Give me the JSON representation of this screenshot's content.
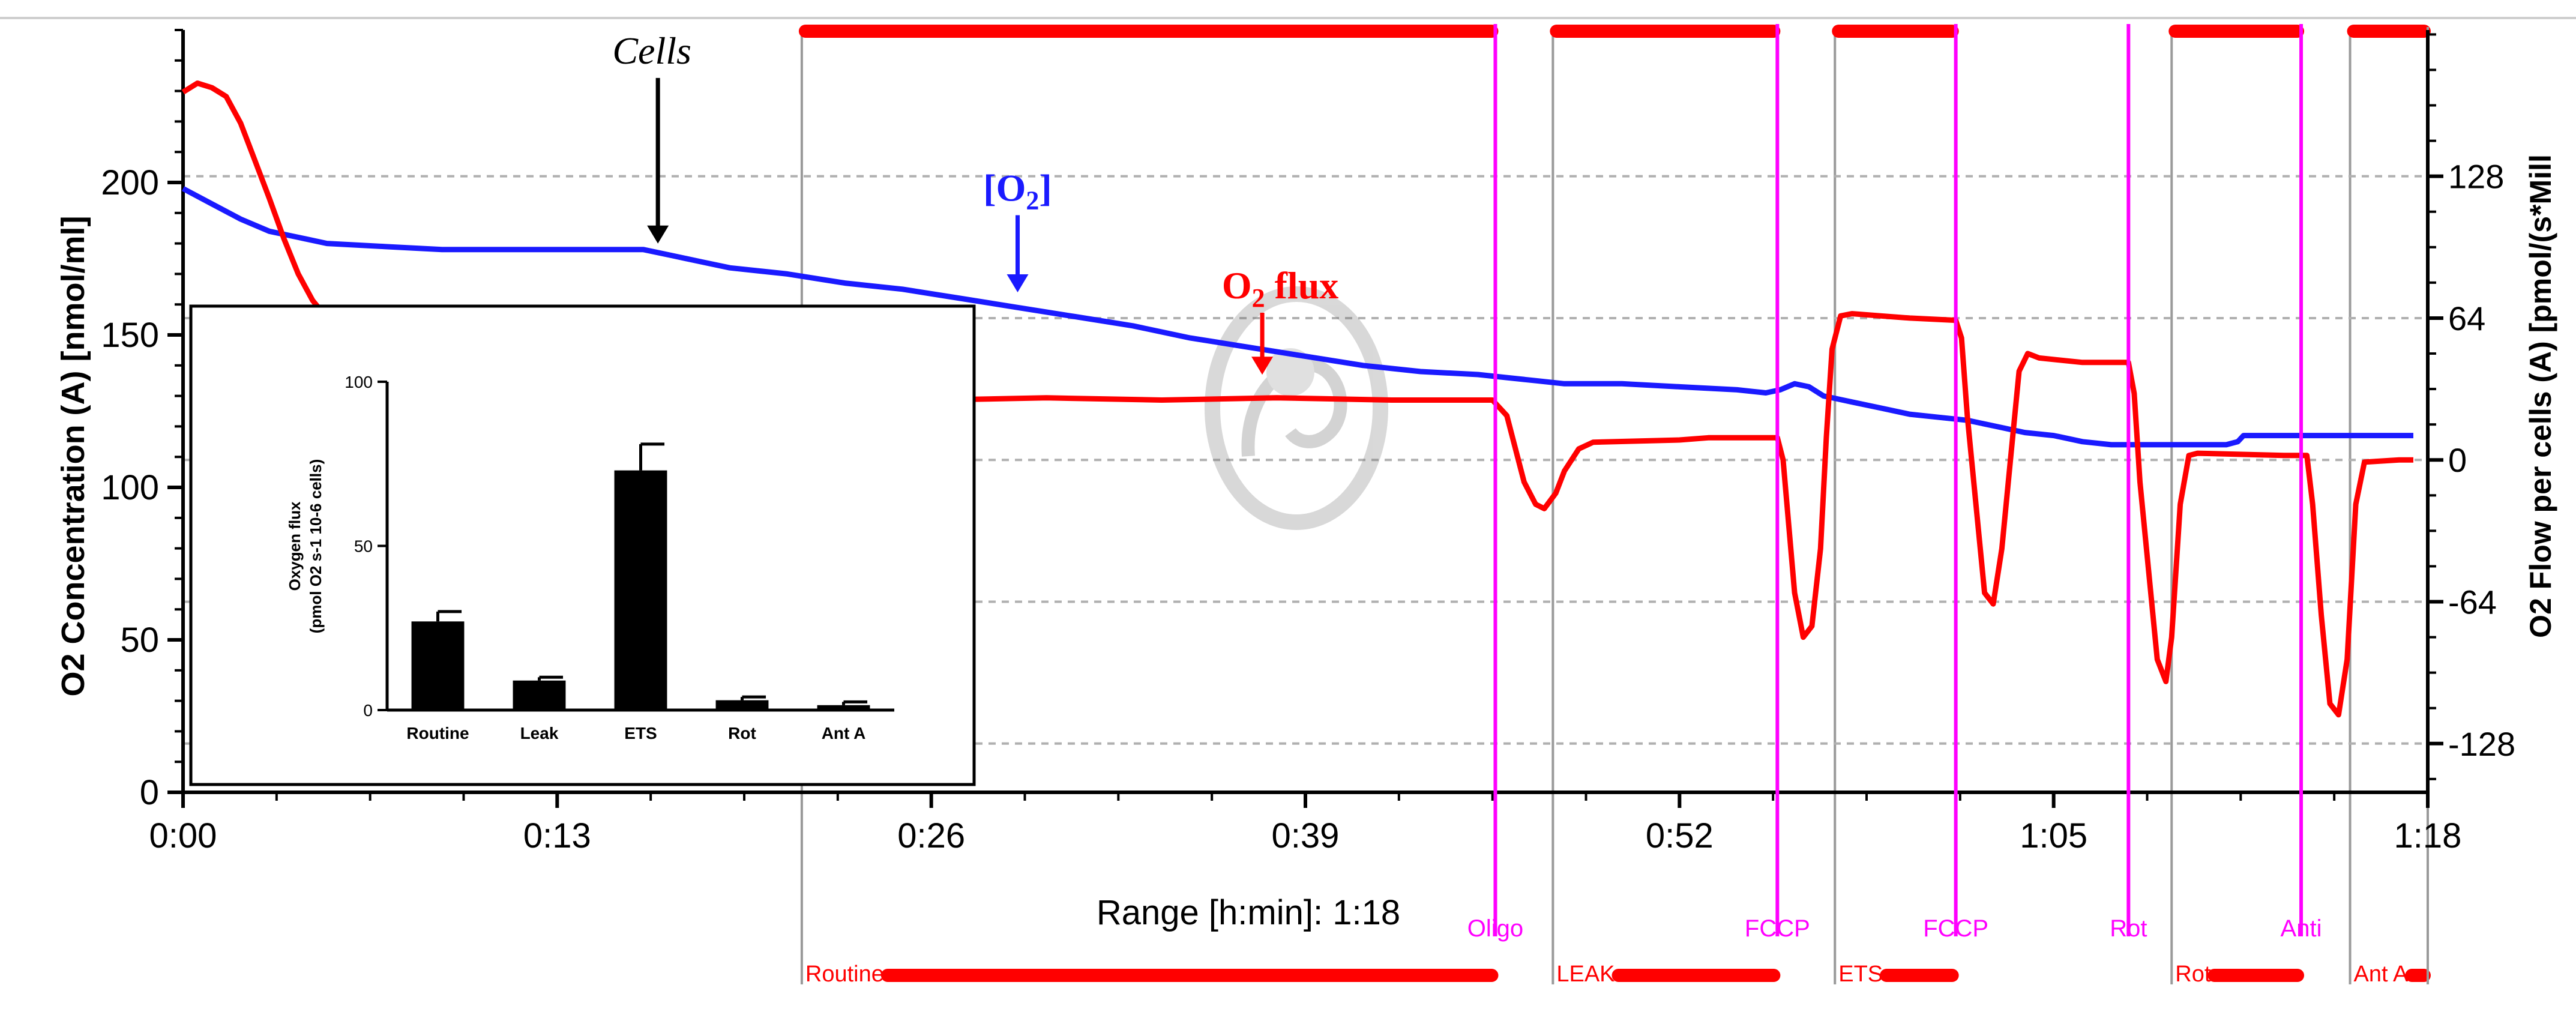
{
  "chart_data": {
    "type": "line",
    "x_unit": "h:min",
    "xlim": [
      0,
      78
    ],
    "x_ticks": [
      {
        "value": 0,
        "label": "0:00"
      },
      {
        "value": 13,
        "label": "0:13"
      },
      {
        "value": 26,
        "label": "0:26"
      },
      {
        "value": 39,
        "label": "0:39"
      },
      {
        "value": 52,
        "label": "0:52"
      },
      {
        "value": 65,
        "label": "1:05"
      },
      {
        "value": 78,
        "label": "1:18"
      }
    ],
    "xlabel": "Range [h:min]: 1:18",
    "ylabel_left": "O2 Concentration (A) [nmol/ml]",
    "ylim_left": [
      0,
      250
    ],
    "yticks_left": [
      0,
      50,
      100,
      150,
      200
    ],
    "ylabel_right": "O2 Flow per cells (A) [pmol/(s*Mill",
    "ylim_right": [
      -150,
      194
    ],
    "yticks_right": [
      -128,
      -64,
      0,
      64,
      128
    ],
    "series": [
      {
        "name": "[O2]",
        "axis": "left",
        "color": "#1a1aff",
        "points": [
          [
            0,
            198
          ],
          [
            1,
            193
          ],
          [
            2,
            188
          ],
          [
            3,
            184
          ],
          [
            4,
            182
          ],
          [
            5,
            180
          ],
          [
            7,
            179
          ],
          [
            9,
            178
          ],
          [
            11,
            178
          ],
          [
            13,
            178
          ],
          [
            15,
            178
          ],
          [
            16,
            178
          ],
          [
            17,
            176
          ],
          [
            18,
            174
          ],
          [
            19,
            172
          ],
          [
            21,
            170
          ],
          [
            23,
            167
          ],
          [
            25,
            165
          ],
          [
            27,
            162
          ],
          [
            29,
            159
          ],
          [
            31,
            156
          ],
          [
            33,
            153
          ],
          [
            35,
            149
          ],
          [
            37,
            146
          ],
          [
            39,
            143
          ],
          [
            41,
            140
          ],
          [
            43,
            138
          ],
          [
            45,
            137
          ],
          [
            46,
            136
          ],
          [
            47,
            135
          ],
          [
            48,
            134
          ],
          [
            50,
            134
          ],
          [
            52,
            133
          ],
          [
            54,
            132
          ],
          [
            55,
            131
          ],
          [
            55.5,
            132
          ],
          [
            56,
            134
          ],
          [
            56.5,
            133
          ],
          [
            57,
            130
          ],
          [
            58,
            128
          ],
          [
            59,
            126
          ],
          [
            60,
            124
          ],
          [
            61,
            123
          ],
          [
            62,
            122
          ],
          [
            63,
            120
          ],
          [
            64,
            118
          ],
          [
            65,
            117
          ],
          [
            66,
            115
          ],
          [
            67,
            114
          ],
          [
            68,
            114
          ],
          [
            69,
            114
          ],
          [
            70,
            114
          ],
          [
            71,
            114
          ],
          [
            71.4,
            115
          ],
          [
            71.6,
            117
          ],
          [
            72,
            117
          ],
          [
            74,
            117
          ],
          [
            76,
            117
          ],
          [
            77,
            117
          ],
          [
            77.5,
            117
          ]
        ]
      },
      {
        "name": "O2 flux",
        "axis": "right",
        "color": "#ff0000",
        "points": [
          [
            0,
            166
          ],
          [
            0.5,
            170
          ],
          [
            1,
            168
          ],
          [
            1.5,
            164
          ],
          [
            2,
            152
          ],
          [
            2.5,
            135
          ],
          [
            3,
            118
          ],
          [
            3.5,
            100
          ],
          [
            4,
            84
          ],
          [
            4.5,
            72
          ],
          [
            5,
            64
          ],
          [
            6,
            52
          ],
          [
            7,
            44
          ],
          [
            8,
            40
          ],
          [
            9,
            36
          ],
          [
            10,
            34
          ],
          [
            12,
            33
          ],
          [
            14,
            32
          ],
          [
            16,
            31
          ],
          [
            18,
            30
          ],
          [
            20,
            29
          ],
          [
            22,
            28
          ],
          [
            24,
            27
          ],
          [
            26,
            27
          ],
          [
            30,
            28
          ],
          [
            34,
            27
          ],
          [
            38,
            28
          ],
          [
            42,
            27
          ],
          [
            45,
            27
          ],
          [
            45.5,
            27
          ],
          [
            46,
            20
          ],
          [
            46.3,
            5
          ],
          [
            46.6,
            -10
          ],
          [
            47,
            -20
          ],
          [
            47.3,
            -22
          ],
          [
            47.7,
            -15
          ],
          [
            48,
            -5
          ],
          [
            48.5,
            5
          ],
          [
            49,
            8
          ],
          [
            52,
            9
          ],
          [
            53,
            10
          ],
          [
            55,
            10
          ],
          [
            55.4,
            10
          ],
          [
            55.6,
            0
          ],
          [
            55.8,
            -30
          ],
          [
            56,
            -60
          ],
          [
            56.3,
            -80
          ],
          [
            56.6,
            -75
          ],
          [
            56.9,
            -40
          ],
          [
            57.1,
            10
          ],
          [
            57.3,
            50
          ],
          [
            57.6,
            65
          ],
          [
            58,
            66
          ],
          [
            60,
            64
          ],
          [
            61.6,
            63
          ],
          [
            61.8,
            55
          ],
          [
            62,
            20
          ],
          [
            62.3,
            -20
          ],
          [
            62.6,
            -60
          ],
          [
            62.9,
            -65
          ],
          [
            63.2,
            -40
          ],
          [
            63.5,
            0
          ],
          [
            63.8,
            40
          ],
          [
            64.1,
            48
          ],
          [
            64.5,
            46
          ],
          [
            66,
            44
          ],
          [
            67.6,
            44
          ],
          [
            67.8,
            30
          ],
          [
            68,
            -10
          ],
          [
            68.3,
            -50
          ],
          [
            68.6,
            -90
          ],
          [
            68.9,
            -100
          ],
          [
            69.1,
            -80
          ],
          [
            69.4,
            -20
          ],
          [
            69.7,
            2
          ],
          [
            70,
            3
          ],
          [
            73,
            2
          ],
          [
            73.8,
            2
          ],
          [
            74,
            -20
          ],
          [
            74.3,
            -70
          ],
          [
            74.6,
            -110
          ],
          [
            74.9,
            -115
          ],
          [
            75.2,
            -90
          ],
          [
            75.5,
            -20
          ],
          [
            75.8,
            -1
          ],
          [
            77,
            0
          ],
          [
            77.5,
            0
          ]
        ]
      }
    ],
    "events": [
      {
        "label": "Oligo",
        "x": 45.6
      },
      {
        "label": "FCCP",
        "x": 55.4
      },
      {
        "label": "FCCP",
        "x": 61.6
      },
      {
        "label": "Rot",
        "x": 67.6
      },
      {
        "label": "Anti",
        "x": 73.6
      }
    ],
    "phases": [
      {
        "label": "Routine",
        "start": 21.5,
        "end": 45.6
      },
      {
        "label": "LEAK",
        "start": 47.6,
        "end": 55.4
      },
      {
        "label": "ETS",
        "start": 57.4,
        "end": 61.6
      },
      {
        "label": "Rot",
        "start": 69.1,
        "end": 73.6
      },
      {
        "label": "Ant A",
        "start": 75.3,
        "end": 78
      }
    ],
    "annotations": [
      {
        "text": "Cells",
        "x": 16.5,
        "y": 239,
        "arrow_to": 178,
        "color": "#000000"
      },
      {
        "text": "[O2]",
        "x": 29,
        "y": 194,
        "arrow_to": 162,
        "color": "#1a1aff"
      },
      {
        "text": "O2 flux",
        "x": 37.5,
        "y": 162,
        "arrow_to": 135,
        "color": "#ff0000"
      }
    ],
    "inset": {
      "type": "bar",
      "ylabel_line1": "Oxygen flux",
      "ylabel_line2": "(pmol O2 s-1 10-6 cells)",
      "ylim": [
        0,
        100
      ],
      "yticks": [
        0,
        50,
        100
      ],
      "categories": [
        "Routine",
        "Leak",
        "ETS",
        "Rot",
        "Ant A"
      ],
      "values": [
        27,
        9,
        73,
        3,
        1.5
      ],
      "errors": [
        3,
        1,
        8,
        1,
        1
      ]
    }
  }
}
